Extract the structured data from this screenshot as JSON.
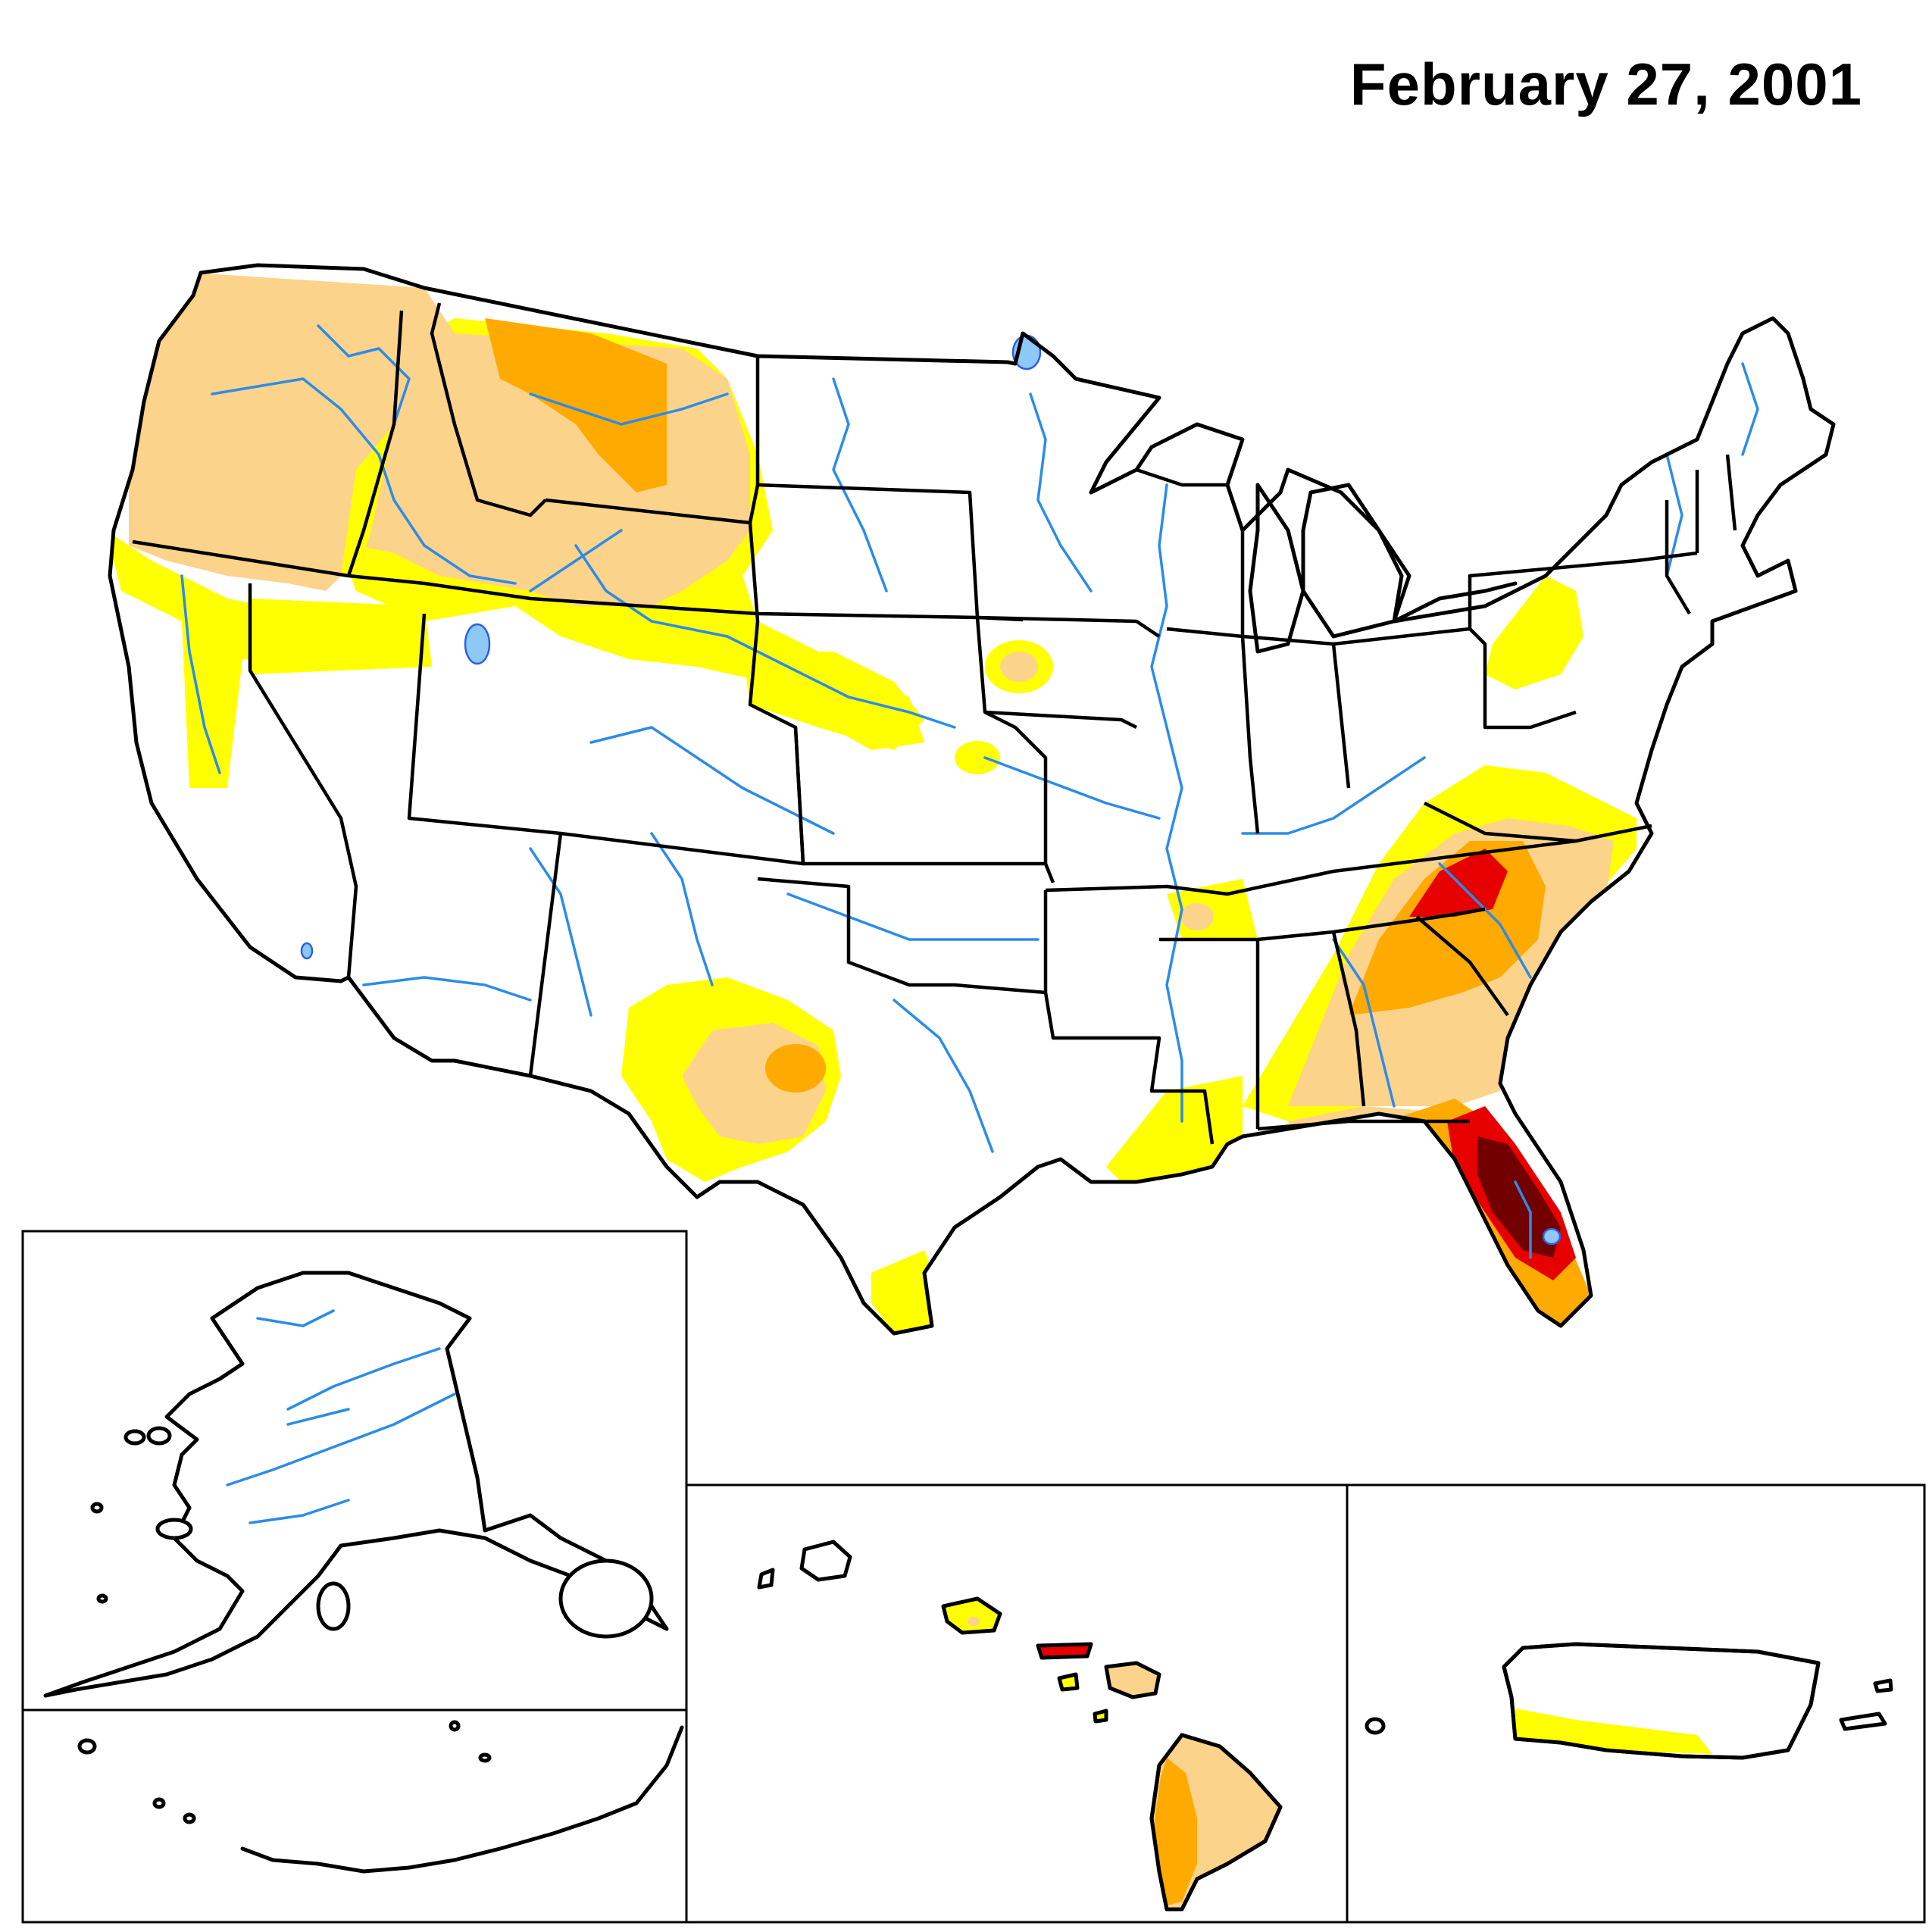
{
  "map": {
    "date": "February 27, 2001",
    "background": "#ffffff"
  },
  "drought_colors": {
    "D0": "#ffff00",
    "D1": "#fcd38a",
    "D2": "#ffaa00",
    "D3": "#e60000",
    "D4": "#730000"
  },
  "water_color": "#2b8ce8",
  "lake_color": "#8ec8f5",
  "insets": [
    "alaska",
    "aleutians",
    "hawaii",
    "puerto-rico"
  ]
}
